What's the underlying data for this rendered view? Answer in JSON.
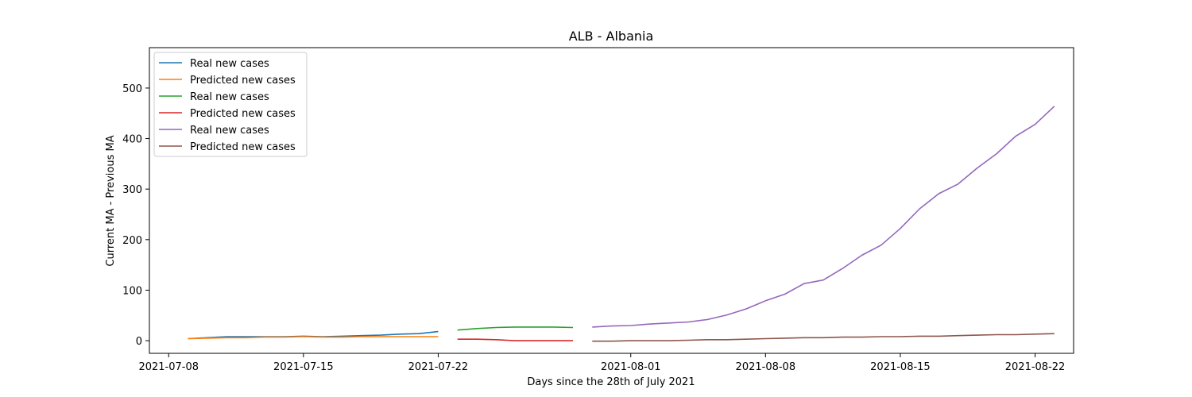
{
  "chart_data": {
    "type": "line",
    "title": "ALB - Albania",
    "xlabel": "Days since the 28th of July 2021",
    "ylabel": "Current MA - Previous MA",
    "xlim": [
      "2021-07-07",
      "2021-08-24"
    ],
    "ylim": [
      -25,
      580
    ],
    "x_ticks": [
      "2021-07-08",
      "2021-07-15",
      "2021-07-22",
      "2021-08-01",
      "2021-08-08",
      "2021-08-15",
      "2021-08-22"
    ],
    "y_ticks": [
      0,
      100,
      200,
      300,
      400,
      500
    ],
    "grid": false,
    "legend_position": "upper-left",
    "series": [
      {
        "name": "Real new cases",
        "color": "#1f77b4",
        "x": [
          "2021-07-09",
          "2021-07-10",
          "2021-07-11",
          "2021-07-12",
          "2021-07-13",
          "2021-07-14",
          "2021-07-15",
          "2021-07-16",
          "2021-07-17",
          "2021-07-18",
          "2021-07-19",
          "2021-07-20",
          "2021-07-21",
          "2021-07-22"
        ],
        "y": [
          4,
          6,
          8,
          8,
          8,
          8,
          9,
          8,
          9,
          10,
          11,
          13,
          14,
          18
        ]
      },
      {
        "name": "Predicted new cases",
        "color": "#ff7f0e",
        "x": [
          "2021-07-09",
          "2021-07-10",
          "2021-07-11",
          "2021-07-12",
          "2021-07-13",
          "2021-07-14",
          "2021-07-15",
          "2021-07-16",
          "2021-07-17",
          "2021-07-18",
          "2021-07-19",
          "2021-07-20",
          "2021-07-21",
          "2021-07-22"
        ],
        "y": [
          4,
          5,
          6,
          6,
          7,
          7,
          8,
          7,
          7,
          8,
          8,
          8,
          8,
          8
        ]
      },
      {
        "name": "Real new cases",
        "color": "#2ca02c",
        "x": [
          "2021-07-23",
          "2021-07-24",
          "2021-07-25",
          "2021-07-26",
          "2021-07-27",
          "2021-07-28",
          "2021-07-29"
        ],
        "y": [
          21,
          24,
          26,
          27,
          27,
          27,
          26
        ]
      },
      {
        "name": "Predicted new cases",
        "color": "#d62728",
        "x": [
          "2021-07-23",
          "2021-07-24",
          "2021-07-25",
          "2021-07-26",
          "2021-07-27",
          "2021-07-28",
          "2021-07-29"
        ],
        "y": [
          3,
          3,
          2,
          0,
          0,
          0,
          0
        ]
      },
      {
        "name": "Real new cases",
        "color": "#9467bd",
        "x": [
          "2021-07-30",
          "2021-07-31",
          "2021-08-01",
          "2021-08-02",
          "2021-08-03",
          "2021-08-04",
          "2021-08-05",
          "2021-08-06",
          "2021-08-07",
          "2021-08-08",
          "2021-08-09",
          "2021-08-10",
          "2021-08-11",
          "2021-08-12",
          "2021-08-13",
          "2021-08-14",
          "2021-08-15",
          "2021-08-16",
          "2021-08-17",
          "2021-08-18",
          "2021-08-19",
          "2021-08-20",
          "2021-08-21",
          "2021-08-22",
          "2021-08-23"
        ],
        "y": [
          27,
          29,
          30,
          33,
          35,
          37,
          42,
          51,
          63,
          79,
          92,
          113,
          120,
          143,
          169,
          189,
          222,
          261,
          291,
          310,
          342,
          370,
          405,
          428,
          464
        ]
      },
      {
        "name": "Predicted new cases",
        "color": "#8c564b",
        "x": [
          "2021-07-30",
          "2021-07-31",
          "2021-08-01",
          "2021-08-02",
          "2021-08-03",
          "2021-08-04",
          "2021-08-05",
          "2021-08-06",
          "2021-08-07",
          "2021-08-08",
          "2021-08-09",
          "2021-08-10",
          "2021-08-11",
          "2021-08-12",
          "2021-08-13",
          "2021-08-14",
          "2021-08-15",
          "2021-08-16",
          "2021-08-17",
          "2021-08-18",
          "2021-08-19",
          "2021-08-20",
          "2021-08-21",
          "2021-08-22",
          "2021-08-23"
        ],
        "y": [
          -1,
          -1,
          0,
          0,
          0,
          1,
          2,
          2,
          3,
          4,
          5,
          6,
          6,
          7,
          7,
          8,
          8,
          9,
          9,
          10,
          11,
          12,
          12,
          13,
          14
        ]
      }
    ]
  }
}
